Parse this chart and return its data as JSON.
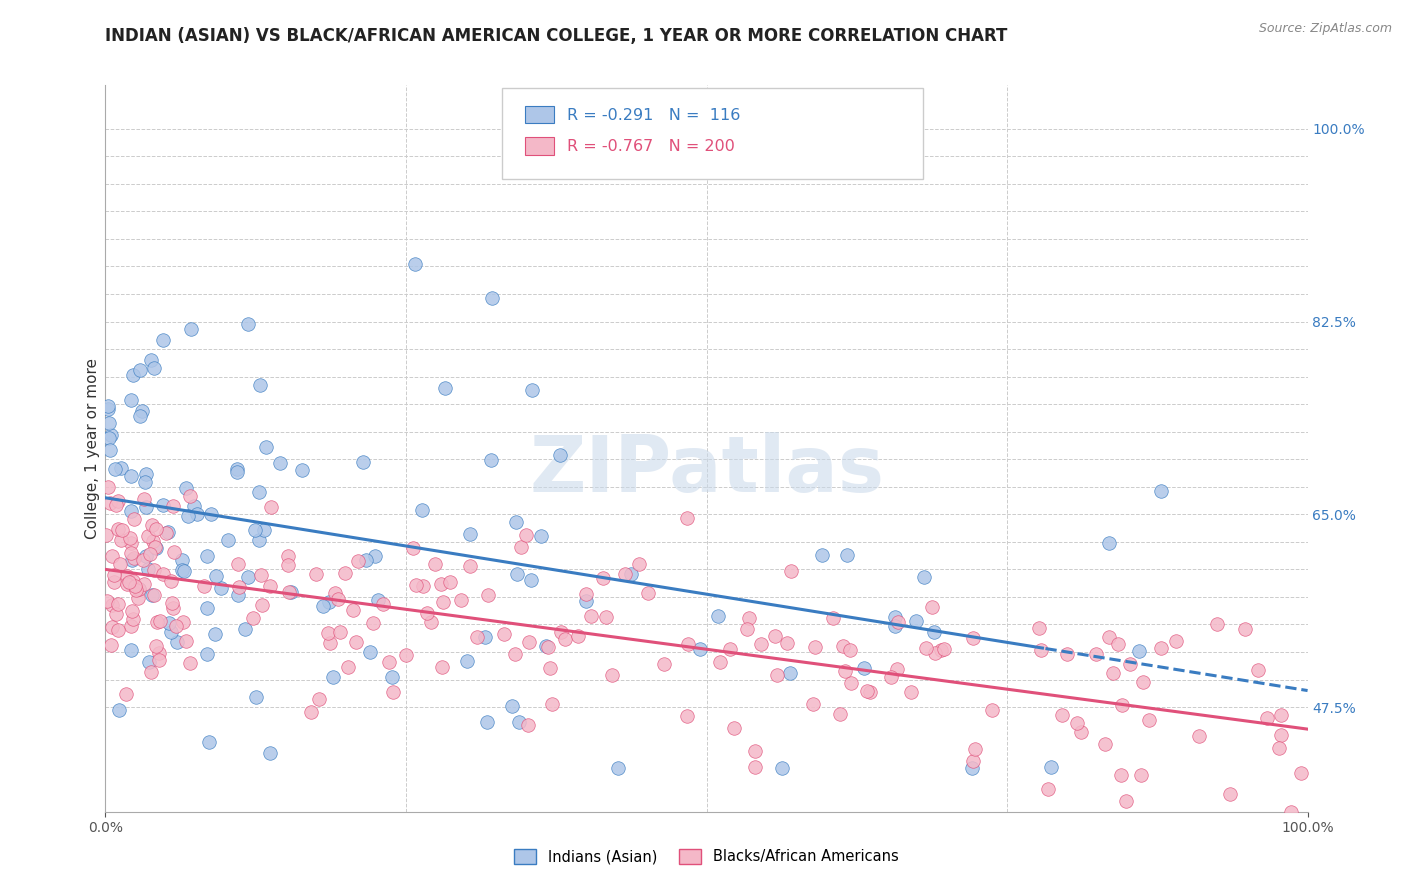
{
  "title": "INDIAN (ASIAN) VS BLACK/AFRICAN AMERICAN COLLEGE, 1 YEAR OR MORE CORRELATION CHART",
  "source": "Source: ZipAtlas.com",
  "ylabel": "College, 1 year or more",
  "xlim": [
    0.0,
    1.0
  ],
  "ylim": [
    0.38,
    1.04
  ],
  "right_ytick_labels": [
    "100.0%",
    "82.5%",
    "65.0%",
    "47.5%"
  ],
  "right_ytick_positions": [
    1.0,
    0.825,
    0.65,
    0.475
  ],
  "xtick_labels": [
    "0.0%",
    "100.0%"
  ],
  "legend_labels_bottom": [
    "Indians (Asian)",
    "Blacks/African Americans"
  ],
  "watermark": "ZIPatlas",
  "background_color": "#ffffff",
  "grid_color": "#cccccc",
  "blue_scatter_color": "#aec6e8",
  "pink_scatter_color": "#f4b8c8",
  "blue_line_color": "#3a7cc1",
  "pink_line_color": "#e0507a",
  "blue_line_dashed_after": 0.78,
  "R_blue": -0.291,
  "N_blue": 116,
  "R_pink": -0.767,
  "N_pink": 200,
  "blue_intercept": 0.665,
  "blue_slope": -0.175,
  "pink_intercept": 0.6,
  "pink_slope": -0.145,
  "right_axis_color": "#3a7cc1",
  "title_fontsize": 12,
  "axis_label_fontsize": 11,
  "tick_fontsize": 10
}
